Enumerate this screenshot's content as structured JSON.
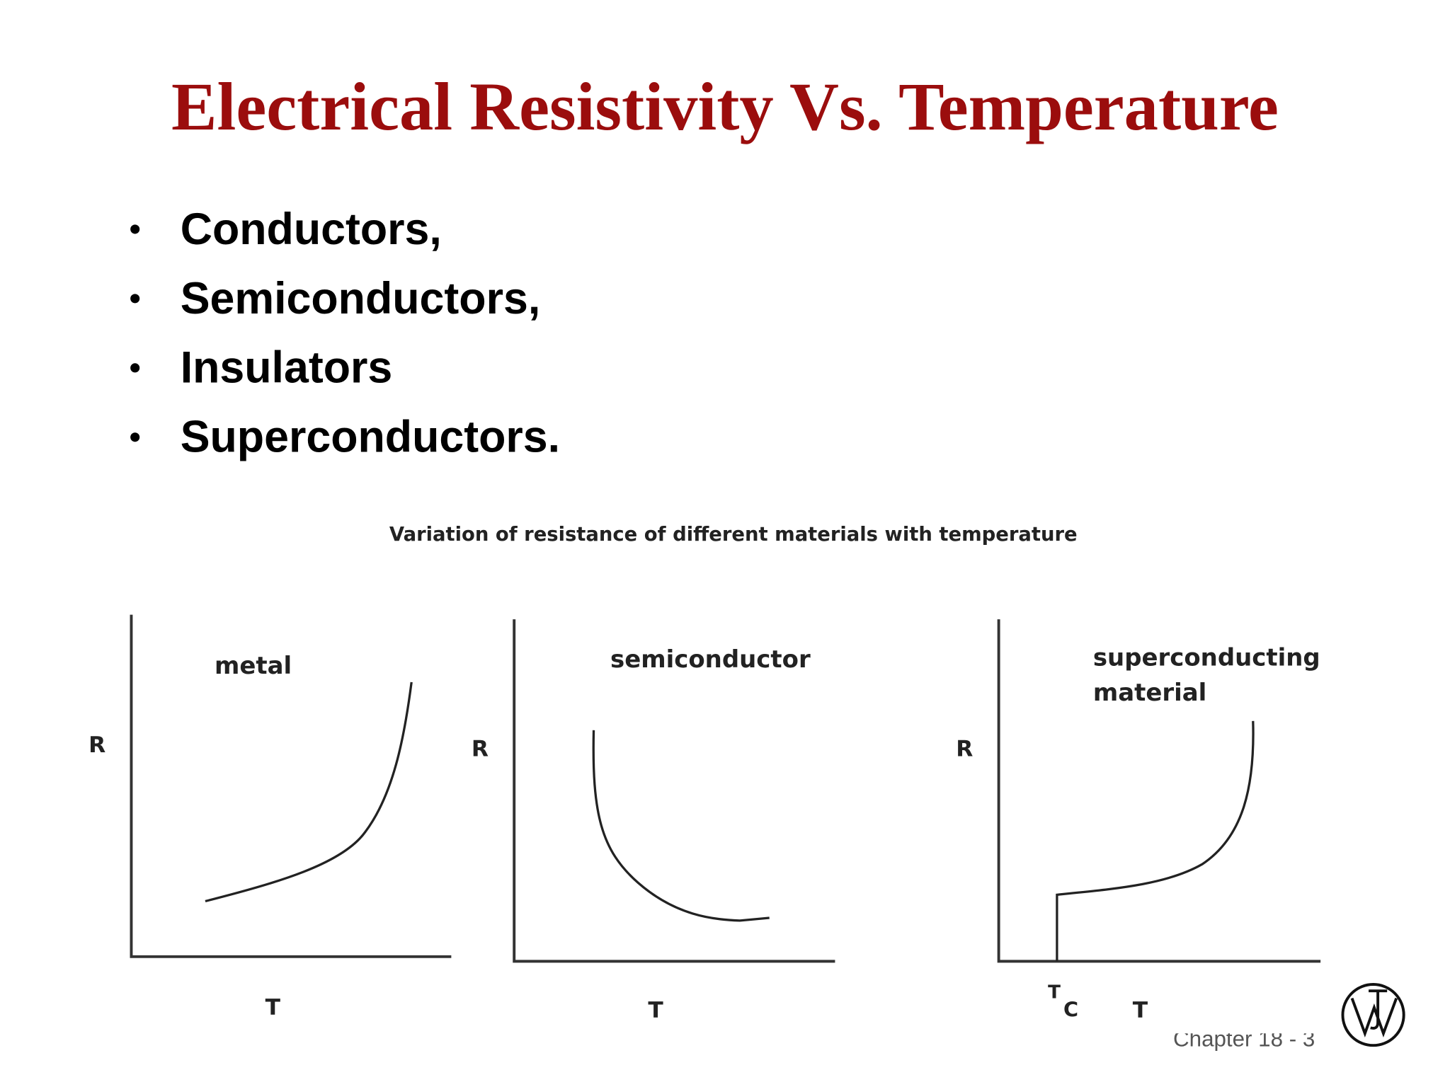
{
  "header": {
    "title": "Electrical Resistivity Vs. Temperature"
  },
  "bullets": [
    "Conductors,",
    "Semiconductors,",
    "Insulators",
    "Superconductors."
  ],
  "figure": {
    "caption": "Variation of resistance of different materials with temperature",
    "panels": [
      {
        "label": [
          "metal"
        ],
        "y_label": "R",
        "x_label": "T"
      },
      {
        "label": [
          "semiconductor"
        ],
        "y_label": "R",
        "x_label": "T"
      },
      {
        "label": [
          "superconducting",
          "material"
        ],
        "y_label": "R",
        "x_label": "T",
        "tc_label": "T",
        "tc_subscript": "C"
      }
    ]
  },
  "footer": "Chapter 18 - 3"
}
